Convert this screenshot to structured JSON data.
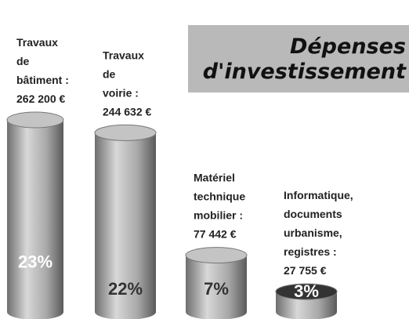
{
  "chart_data": {
    "type": "cylinder",
    "title": "Dépenses d'investissement",
    "categories": [
      [
        "Travaux",
        "de",
        "bâtiment :"
      ],
      [
        "Travaux",
        "de",
        "voirie :"
      ],
      [
        "Matériel",
        "technique",
        "mobilier :"
      ],
      [
        "Informatique,",
        "documents",
        "urbanisme,",
        "registres :"
      ]
    ],
    "values": [
      262200,
      244632,
      77442,
      27755
    ],
    "value_labels": [
      "262 200 €",
      "244 632 €",
      "77 442 €",
      "27 755 €"
    ],
    "shares": [
      23,
      22,
      7,
      3
    ],
    "share_labels": [
      "23%",
      "22%",
      "7%",
      "3%"
    ],
    "color": "#9a9a9a"
  }
}
